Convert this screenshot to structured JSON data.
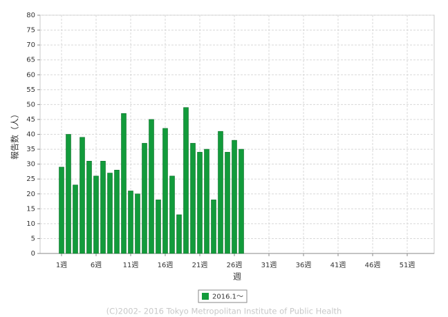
{
  "chart_data": {
    "type": "bar",
    "categories": [
      "1週",
      null,
      null,
      null,
      null,
      "6週",
      null,
      null,
      null,
      null,
      "11週",
      null,
      null,
      null,
      null,
      "16週",
      null,
      null,
      null,
      null,
      "21週",
      null,
      null,
      null,
      null,
      "26週",
      null,
      null,
      null,
      null,
      "31週",
      null,
      null,
      null,
      null,
      "36週",
      null,
      null,
      null,
      null,
      "41週",
      null,
      null,
      null,
      null,
      "46週",
      null,
      null,
      null,
      null,
      "51週",
      null,
      null
    ],
    "series": [
      {
        "name": "2016.1～",
        "color": "#129b3b",
        "values": [
          29,
          40,
          23,
          39,
          31,
          26,
          31,
          27,
          28,
          47,
          21,
          20,
          37,
          45,
          18,
          42,
          26,
          13,
          49,
          37,
          34,
          35,
          18,
          41,
          34,
          38,
          35,
          null,
          null,
          null,
          null,
          null,
          null,
          null,
          null,
          null,
          null,
          null,
          null,
          null,
          null,
          null,
          null,
          null,
          null,
          null,
          null,
          null,
          null,
          null,
          null,
          null,
          null
        ]
      }
    ],
    "ylabel": "報告数（人）",
    "xlabel": "週",
    "ylim": [
      0,
      80
    ],
    "yticks": [
      0,
      5,
      10,
      15,
      20,
      25,
      30,
      35,
      40,
      45,
      50,
      55,
      60,
      65,
      70,
      75,
      80
    ],
    "grid": true,
    "footer": "(C)2002- 2016 Tokyo Metropolitan Institute of Public Health"
  }
}
